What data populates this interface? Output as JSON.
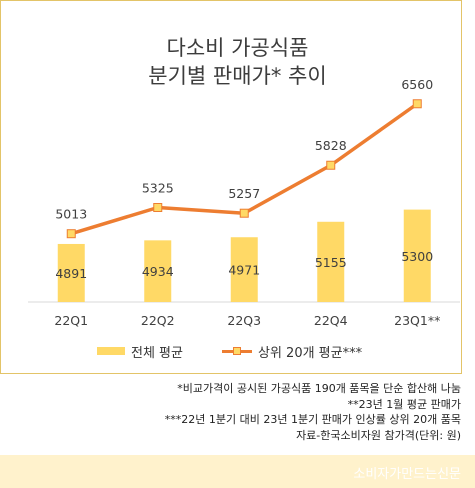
{
  "chart_data": {
    "type": "bar",
    "title_line1": "다소비 가공식품",
    "title_line2": "분기별 판매가* 추이",
    "categories": [
      "22Q1",
      "22Q2",
      "22Q3",
      "22Q4",
      "23Q1**"
    ],
    "series": [
      {
        "name": "전체 평균",
        "type": "bar",
        "values": [
          4891,
          4934,
          4971,
          5155,
          5300
        ],
        "color": "#ffd966"
      },
      {
        "name": "상위 20개 평균***",
        "type": "line",
        "values": [
          5013,
          5325,
          5257,
          5828,
          6560
        ],
        "color": "#ed7d31"
      }
    ],
    "grid": false,
    "legend_position": "bottom"
  },
  "footnotes": [
    "*비교가격이 공시된 가공식품 190개 품목을 단순 합산해 나눔",
    "**23년 1월 평균 판매가",
    "***22년 1분기 대비 23년 1분기 판매가 인상률 상위 20개 품목",
    "자료-한국소비자원 참가격(단위: 원)"
  ],
  "watermark": "소비자가만드는신문"
}
